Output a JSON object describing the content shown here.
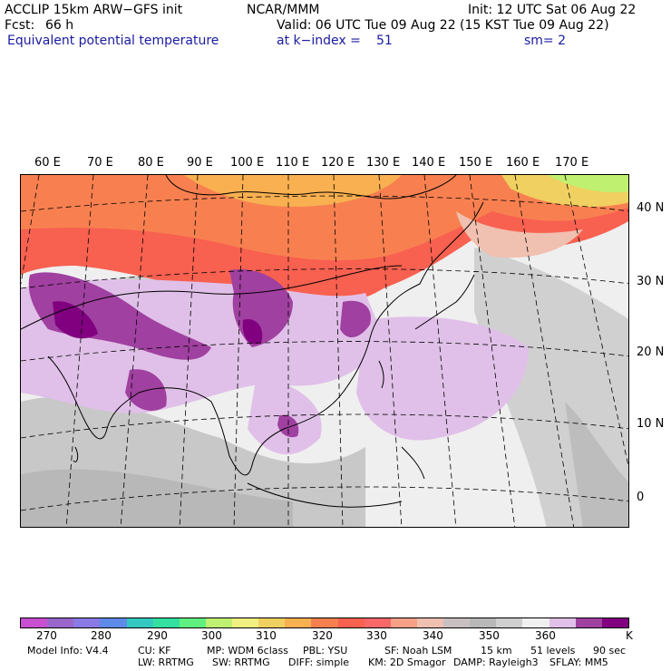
{
  "header": {
    "model": "ACCLIP 15km ARW−GFS init",
    "org": "NCAR/MMM",
    "init": "Init: 12 UTC Sat 06 Aug 22",
    "fcst_label": "Fcst:",
    "fcst_value": "66 h",
    "valid": "Valid: 06 UTC Tue 09 Aug 22 (15 KST Tue 09 Aug 22)",
    "field": "Equivalent potential temperature",
    "level": "at k−index =",
    "level_value": "51",
    "smooth": "sm= 2"
  },
  "map": {
    "lon_labels": [
      "60 E",
      "70 E",
      "80 E",
      "90 E",
      "100 E",
      "110 E",
      "120 E",
      "130 E",
      "140 E",
      "150 E",
      "160 E",
      "170 E"
    ],
    "lat_labels": [
      "40 N",
      "30 N",
      "20 N",
      "10 N",
      "0"
    ]
  },
  "colorbar": {
    "colors": [
      "#c84fd0",
      "#9966cc",
      "#8a7ae6",
      "#5e8ae8",
      "#33c8c0",
      "#33e0a0",
      "#60f080",
      "#c0f070",
      "#f0f080",
      "#f0d060",
      "#f8b050",
      "#f88050",
      "#f86050",
      "#f86868",
      "#f8a088",
      "#f0c0b0",
      "#c8c0c0",
      "#b8b8b8",
      "#d0d0d0",
      "#f0f0f0",
      "#e0c0e8",
      "#a040a0",
      "#800080"
    ],
    "labels": [
      "270",
      "280",
      "290",
      "300",
      "310",
      "320",
      "330",
      "340",
      "350",
      "360",
      "K"
    ]
  },
  "footer": {
    "line1": [
      "Model Info: V4.4",
      "CU: KF",
      "MP: WDM 6class",
      "PBL: YSU",
      "SF: Noah LSM",
      "15 km",
      "51 levels",
      "90 sec"
    ],
    "line2": [
      "LW: RRTMG",
      "SW: RRTMG",
      "DIFF: simple",
      "KM: 2D Smagor",
      "DAMP: Rayleigh3",
      "SFLAY: MM5"
    ]
  }
}
